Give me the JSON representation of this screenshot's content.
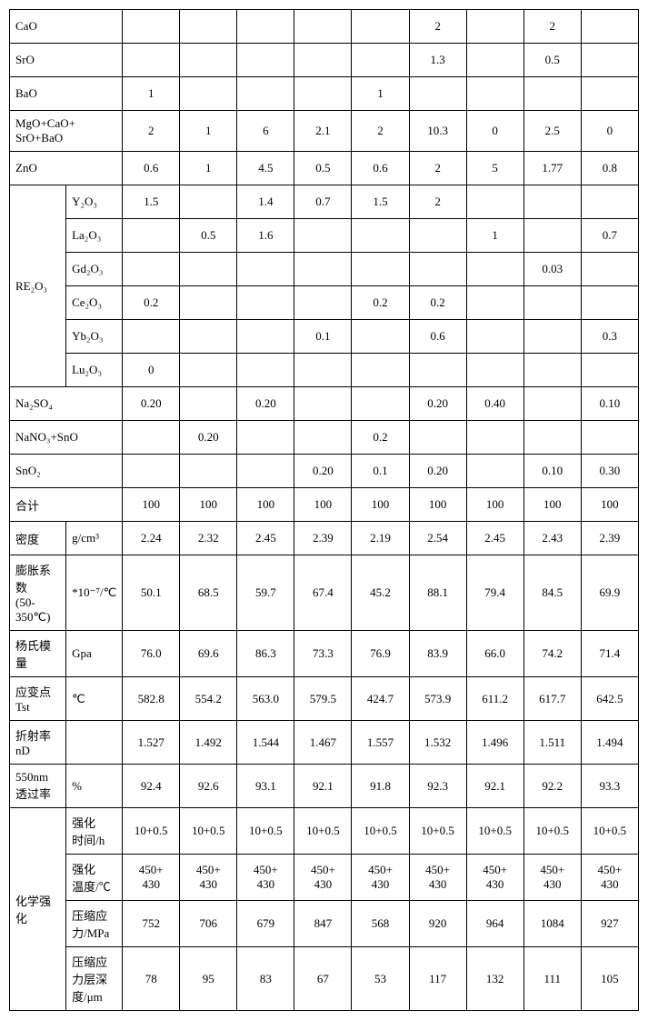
{
  "rows": {
    "cao": {
      "label": "CaO",
      "cells": [
        "",
        "",
        "",
        "",
        "",
        "2",
        "",
        "2",
        ""
      ]
    },
    "sro": {
      "label": "SrO",
      "cells": [
        "",
        "",
        "",
        "",
        "",
        "1.3",
        "",
        "0.5",
        ""
      ]
    },
    "bao": {
      "label": "BaO",
      "cells": [
        "1",
        "",
        "",
        "",
        "1",
        "",
        "",
        "",
        ""
      ]
    },
    "sumox": {
      "label": "MgO+CaO+\nSrO+BaO",
      "cells": [
        "2",
        "1",
        "6",
        "2.1",
        "2",
        "10.3",
        "0",
        "2.5",
        "0"
      ]
    },
    "zno": {
      "label": "ZnO",
      "cells": [
        "0.6",
        "1",
        "4.5",
        "0.5",
        "0.6",
        "2",
        "5",
        "1.77",
        "0.8"
      ]
    },
    "y2o3": {
      "label": "Y₂O₃",
      "cells": [
        "1.5",
        "",
        "1.4",
        "0.7",
        "1.5",
        "2",
        "",
        "",
        ""
      ]
    },
    "la2o3": {
      "label": "La₂O₃",
      "cells": [
        "",
        "0.5",
        "1.6",
        "",
        "",
        "",
        "1",
        "",
        "0.7"
      ]
    },
    "gd2o3": {
      "label": "Gd₂O₃",
      "cells": [
        "",
        "",
        "",
        "",
        "",
        "",
        "",
        "0.03",
        ""
      ]
    },
    "ce2o3": {
      "label": "Ce₂O₃",
      "cells": [
        "0.2",
        "",
        "",
        "",
        "0.2",
        "0.2",
        "",
        "",
        ""
      ]
    },
    "yb2o3": {
      "label": "Yb₂O₃",
      "cells": [
        "",
        "",
        "",
        "0.1",
        "",
        "0.6",
        "",
        "",
        "0.3"
      ]
    },
    "lu2o3": {
      "label": "Lu₂O₃",
      "cells": [
        "0",
        "",
        "",
        "",
        "",
        "",
        "",
        "",
        ""
      ]
    },
    "re2o3": {
      "label": "RE₂O₃"
    },
    "na2so4": {
      "label": "Na₂SO₄",
      "cells": [
        "0.20",
        "",
        "0.20",
        "",
        "",
        "0.20",
        "0.40",
        "",
        "0.10"
      ]
    },
    "nano3": {
      "label": "NaNO₃+SnO",
      "cells": [
        "",
        "0.20",
        "",
        "",
        "0.2",
        "",
        "",
        "",
        ""
      ]
    },
    "sno2": {
      "label": "SnO₂",
      "cells": [
        "",
        "",
        "",
        "0.20",
        "0.1",
        "0.20",
        "",
        "0.10",
        "0.30"
      ]
    },
    "total": {
      "label": "合计",
      "cells": [
        "100",
        "100",
        "100",
        "100",
        "100",
        "100",
        "100",
        "100",
        "100"
      ]
    },
    "density": {
      "label": "密度",
      "unit": "g/cm³",
      "cells": [
        "2.24",
        "2.32",
        "2.45",
        "2.39",
        "2.19",
        "2.54",
        "2.45",
        "2.43",
        "2.39"
      ]
    },
    "expand": {
      "label": "膨胀系数\n(50-350℃)",
      "unit": "*10⁻⁷/℃",
      "cells": [
        "50.1",
        "68.5",
        "59.7",
        "67.4",
        "45.2",
        "88.1",
        "79.4",
        "84.5",
        "69.9"
      ]
    },
    "youngs": {
      "label": "杨氏模量",
      "unit": "Gpa",
      "cells": [
        "76.0",
        "69.6",
        "86.3",
        "73.3",
        "76.9",
        "83.9",
        "66.0",
        "74.2",
        "71.4"
      ]
    },
    "strain": {
      "label": "应变点 Tst",
      "unit": "℃",
      "cells": [
        "582.8",
        "554.2",
        "563.0",
        "579.5",
        "424.7",
        "573.9",
        "611.2",
        "617.7",
        "642.5"
      ]
    },
    "refract": {
      "label": "折射率 nD",
      "unit": "",
      "cells": [
        "1.527",
        "1.492",
        "1.544",
        "1.467",
        "1.557",
        "1.532",
        "1.496",
        "1.511",
        "1.494"
      ]
    },
    "trans": {
      "label": "550nm\n透过率",
      "unit": "%",
      "cells": [
        "92.4",
        "92.6",
        "93.1",
        "92.1",
        "91.8",
        "92.3",
        "92.1",
        "92.2",
        "93.3"
      ]
    },
    "chem": {
      "label": "化学强化"
    },
    "chemtime": {
      "label": "强化\n时间/h",
      "cells": [
        "10+0.5",
        "10+0.5",
        "10+0.5",
        "10+0.5",
        "10+0.5",
        "10+0.5",
        "10+0.5",
        "10+0.5",
        "10+0.5"
      ]
    },
    "chemtemp": {
      "label": "强化\n温度/℃",
      "cells": [
        "450+\n430",
        "450+\n430",
        "450+\n430",
        "450+\n430",
        "450+\n430",
        "450+\n430",
        "450+\n430",
        "450+\n430",
        "450+\n430"
      ]
    },
    "chemstress": {
      "label": "压缩应\n力/MPa",
      "cells": [
        "752",
        "706",
        "679",
        "847",
        "568",
        "920",
        "964",
        "1084",
        "927"
      ]
    },
    "chemdepth": {
      "label": "压缩应\n力层深\n度/μm",
      "cells": [
        "78",
        "95",
        "83",
        "67",
        "53",
        "117",
        "132",
        "111",
        "105"
      ]
    }
  }
}
